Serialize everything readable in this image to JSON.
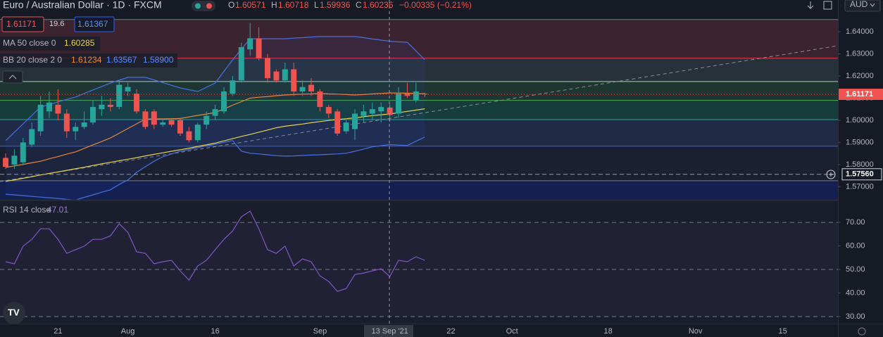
{
  "header": {
    "title": "Euro / Australian Dollar · 1D · FXCM",
    "ohlc_labels": [
      "O",
      "H",
      "L",
      "C"
    ],
    "change": "−0.00335 (−0.21%)",
    "sell": "1.61171",
    "spread": "19.6",
    "buy": "1.61367",
    "bb_lower": "1.58900",
    "currency": "AUD"
  },
  "chart_data": [
    {
      "type": "candlestick",
      "categories": [
        null,
        null,
        null,
        null,
        null,
        null,
        "21",
        null,
        null,
        null,
        null,
        null,
        null,
        null,
        "Aug",
        null,
        null,
        null,
        null,
        null,
        null,
        null,
        null,
        null,
        "16",
        null,
        null,
        null,
        null,
        null,
        null,
        null,
        null,
        null,
        null,
        null,
        "Sep",
        null,
        null,
        null,
        null,
        null,
        null,
        null,
        "13 Sep '21",
        null,
        null,
        null,
        null,
        null,
        null,
        "22",
        null,
        null,
        null,
        null,
        null,
        null,
        "Oct",
        null,
        null,
        null,
        null,
        null,
        null,
        null,
        null,
        null,
        null,
        "18",
        null,
        null,
        null,
        null,
        null,
        null,
        null,
        null,
        null,
        "Nov",
        null,
        null,
        null,
        null,
        null,
        null,
        null,
        null,
        null,
        "15",
        null,
        null,
        null,
        null,
        null
      ],
      "open": [
        1.583,
        1.58,
        1.581,
        1.589,
        1.595,
        1.604,
        1.607,
        1.603,
        1.595,
        1.597,
        1.599,
        1.605,
        1.607,
        1.606,
        1.613,
        1.612,
        1.604,
        1.604,
        1.598,
        1.6,
        1.6,
        1.595,
        1.591,
        1.598,
        1.602,
        1.604,
        1.612,
        1.618,
        1.632,
        1.637,
        1.628,
        1.622,
        1.618,
        1.623,
        1.613,
        1.616,
        1.613,
        1.606,
        1.604,
        1.595,
        1.596,
        1.602,
        1.603,
        1.604,
        1.60571,
        1.603,
        1.612,
        1.609,
        1.612,
        null,
        null,
        null,
        null,
        null,
        null,
        null,
        null,
        null,
        null,
        null,
        null,
        null,
        null,
        null,
        null,
        null,
        null,
        null,
        null,
        null,
        null,
        null,
        null,
        null,
        null,
        null,
        null,
        null,
        null,
        null,
        null,
        null,
        null,
        null,
        null,
        null,
        null,
        null,
        null,
        null,
        null,
        null,
        null,
        null,
        null
      ],
      "high": [
        1.585,
        1.587,
        1.592,
        1.599,
        1.611,
        1.613,
        1.614,
        1.605,
        1.599,
        1.604,
        1.609,
        1.611,
        1.61,
        1.618,
        1.617,
        1.614,
        1.605,
        1.605,
        1.6,
        1.601,
        1.601,
        1.597,
        1.599,
        1.604,
        1.607,
        1.615,
        1.62,
        1.635,
        1.644,
        1.642,
        1.63,
        1.623,
        1.626,
        1.626,
        1.618,
        1.619,
        1.614,
        1.607,
        1.605,
        1.601,
        1.605,
        1.607,
        1.608,
        1.608,
        1.60718,
        1.615,
        1.617,
        1.617,
        1.6125,
        null,
        null,
        null,
        null,
        null,
        null,
        null,
        null,
        null,
        null,
        null,
        null,
        null,
        null,
        null,
        null,
        null,
        null,
        null,
        null,
        null,
        null,
        null,
        null,
        null,
        null,
        null,
        null,
        null,
        null,
        null,
        null,
        null,
        null,
        null,
        null,
        null,
        null,
        null,
        null,
        null,
        null,
        null,
        null,
        null,
        null
      ],
      "low": [
        1.578,
        1.578,
        1.58,
        1.588,
        1.593,
        1.601,
        1.6,
        1.592,
        1.591,
        1.596,
        1.598,
        1.602,
        1.604,
        1.605,
        1.611,
        1.603,
        1.596,
        1.596,
        1.597,
        1.597,
        1.593,
        1.59,
        1.59,
        1.596,
        1.6,
        1.603,
        1.611,
        1.617,
        1.629,
        1.627,
        1.617,
        1.617,
        1.617,
        1.611,
        1.611,
        1.611,
        1.604,
        1.601,
        1.593,
        1.594,
        1.591,
        1.599,
        1.6,
        1.599,
        1.59936,
        1.601,
        1.61,
        1.608,
        1.6105,
        null,
        null,
        null,
        null,
        null,
        null,
        null,
        null,
        null,
        null,
        null,
        null,
        null,
        null,
        null,
        null,
        null,
        null,
        null,
        null,
        null,
        null,
        null,
        null,
        null,
        null,
        null,
        null,
        null,
        null,
        null,
        null,
        null,
        null,
        null,
        null,
        null,
        null,
        null,
        null,
        null,
        null,
        null,
        null,
        null,
        null
      ],
      "close": [
        1.579,
        1.584,
        1.59,
        1.596,
        1.607,
        1.608,
        1.603,
        1.595,
        1.597,
        1.599,
        1.606,
        1.607,
        1.606,
        1.616,
        1.615,
        1.604,
        1.597,
        1.598,
        1.599,
        1.598,
        1.594,
        1.591,
        1.598,
        1.602,
        1.605,
        1.613,
        1.618,
        1.633,
        1.637,
        1.628,
        1.619,
        1.618,
        1.623,
        1.613,
        1.615,
        1.613,
        1.606,
        1.603,
        1.594,
        1.599,
        1.603,
        1.604,
        1.605,
        1.606,
        1.60236,
        1.612,
        1.611,
        1.613,
        1.61171,
        null,
        null,
        null,
        null,
        null,
        null,
        null,
        null,
        null,
        null,
        null,
        null,
        null,
        null,
        null,
        null,
        null,
        null,
        null,
        null,
        null,
        null,
        null,
        null,
        null,
        null,
        null,
        null,
        null,
        null,
        null,
        null,
        null,
        null,
        null,
        null,
        null,
        null,
        null,
        null,
        null,
        null,
        null,
        null,
        null,
        null
      ],
      "up_color": "#26a69a",
      "down_color": "#ef5350",
      "series": [
        {
          "name": "MA 50 close 0",
          "color": "#e8d34a",
          "values": [
            1.5724,
            1.5731,
            1.5738,
            1.5745,
            1.5753,
            1.576,
            1.5767,
            1.5774,
            1.5781,
            1.5788,
            1.5796,
            1.5803,
            1.581,
            1.5817,
            1.5824,
            1.5831,
            1.5839,
            1.5846,
            1.5853,
            1.586,
            1.5867,
            1.5874,
            1.5882,
            1.5889,
            1.5897,
            1.5907,
            1.5917,
            1.5927,
            1.5936,
            1.5946,
            1.5956,
            1.5966,
            1.5973,
            1.5978,
            1.5983,
            1.5989,
            1.5994,
            1.5999,
            1.6003,
            1.6007,
            1.6011,
            1.6016,
            1.6021,
            1.6025,
            1.60285,
            1.6034,
            1.604,
            1.6046,
            1.6052,
            null,
            null,
            null,
            null,
            null,
            null,
            null,
            null,
            null,
            null,
            null,
            null,
            null,
            null,
            null,
            null,
            null,
            null,
            null,
            null,
            null,
            null,
            null,
            null,
            null,
            null,
            null,
            null,
            null,
            null,
            null,
            null,
            null,
            null,
            null,
            null,
            null,
            null,
            null,
            null,
            null,
            null,
            null,
            null,
            null,
            null
          ]
        },
        {
          "name": "BB 20 close 2 0",
          "color": "#e8893a",
          "values": [
            1.5787,
            1.5794,
            1.5801,
            1.5808,
            1.5815,
            1.5826,
            1.5836,
            1.5847,
            1.5857,
            1.5873,
            1.5889,
            1.5904,
            1.592,
            1.5941,
            1.5963,
            1.5984,
            1.6005,
            1.6006,
            1.6006,
            1.6007,
            1.6008,
            1.6015,
            1.6022,
            1.6028,
            1.6035,
            1.6051,
            1.6068,
            1.6084,
            1.61,
            1.6104,
            1.6107,
            1.6111,
            1.6114,
            1.6116,
            1.6118,
            1.6119,
            1.6121,
            1.6119,
            1.6118,
            1.6116,
            1.6114,
            1.6116,
            1.6119,
            1.6121,
            1.61234,
            1.6123,
            1.6122,
            1.6121,
            1.612,
            null,
            null,
            null,
            null,
            null,
            null,
            null,
            null,
            null,
            null,
            null,
            null,
            null,
            null,
            null,
            null,
            null,
            null,
            null,
            null,
            null,
            null,
            null,
            null,
            null,
            null,
            null,
            null,
            null,
            null,
            null,
            null,
            null,
            null,
            null,
            null,
            null,
            null,
            null,
            null,
            null,
            null,
            null,
            null,
            null,
            null
          ]
        },
        {
          "color": "#4a6fe3",
          "values": [
            1.5908,
            1.5946,
            1.5984,
            1.6022,
            1.606,
            1.6071,
            1.6083,
            1.6094,
            1.6105,
            1.6121,
            1.6137,
            1.6152,
            1.6168,
            1.6181,
            1.6194,
            1.6194,
            1.6194,
            1.6182,
            1.617,
            1.6158,
            1.6146,
            1.6138,
            1.613,
            1.6149,
            1.6168,
            1.6221,
            1.6273,
            1.6321,
            1.6368,
            1.6368,
            1.6368,
            1.6368,
            1.6368,
            1.6371,
            1.6373,
            1.6376,
            1.6378,
            1.6378,
            1.6378,
            1.6378,
            1.6378,
            1.6373,
            1.6367,
            1.6362,
            1.63567,
            1.6354,
            1.6352,
            1.6313,
            1.6273,
            null,
            null,
            null,
            null,
            null,
            null,
            null,
            null,
            null,
            null,
            null,
            null,
            null,
            null,
            null,
            null,
            null,
            null,
            null,
            null,
            null,
            null,
            null,
            null,
            null,
            null,
            null,
            null,
            null,
            null,
            null,
            null,
            null,
            null,
            null,
            null,
            null,
            null,
            null,
            null,
            null,
            null,
            null,
            null,
            null,
            null
          ]
        },
        {
          "color": "#4a6fe3",
          "values": [
            1.5666,
            1.5663,
            1.566,
            1.5656,
            1.5653,
            1.565,
            1.5647,
            1.5643,
            1.564,
            1.5652,
            1.5663,
            1.5675,
            1.5686,
            1.571,
            1.573,
            1.5765,
            1.579,
            1.5815,
            1.5835,
            1.5848,
            1.586,
            1.5868,
            1.5876,
            1.5884,
            1.5892,
            1.59,
            1.5908,
            1.586,
            1.5851,
            1.5848,
            1.5844,
            1.584,
            1.5838,
            1.5839,
            1.5841,
            1.5843,
            1.5844,
            1.5846,
            1.5848,
            1.5851,
            1.586,
            1.587,
            1.588,
            1.5885,
            1.589,
            1.5888,
            1.5886,
            1.5905,
            1.5924,
            null,
            null,
            null,
            null,
            null,
            null,
            null,
            null,
            null,
            null,
            null,
            null,
            null,
            null,
            null,
            null,
            null,
            null,
            null,
            null,
            null,
            null,
            null,
            null,
            null,
            null,
            null,
            null,
            null,
            null,
            null,
            null,
            null,
            null,
            null,
            null,
            null,
            null,
            null,
            null,
            null,
            null,
            null,
            null,
            null,
            null
          ]
        }
      ],
      "ylim": [
        1.5644,
        1.6543
      ],
      "yticks": [
        {
          "value": 1.57,
          "label": "1.57000"
        },
        {
          "value": 1.58,
          "label": "1.58000"
        },
        {
          "value": 1.59,
          "label": "1.59000"
        },
        {
          "value": 1.6,
          "label": "1.60000"
        },
        {
          "value": 1.61,
          "label": "1.61000"
        },
        {
          "value": 1.62,
          "label": "1.62000"
        },
        {
          "value": 1.63,
          "label": "1.63000"
        },
        {
          "value": 1.64,
          "label": "1.64000"
        }
      ],
      "levels": [
        {
          "value": 1.6455,
          "color": "#4a8f8a"
        },
        {
          "value": 1.628,
          "color": "#f23645"
        },
        {
          "value": 1.6175,
          "color": "#a5d6a7"
        },
        {
          "value": 1.609,
          "color": "#4caf50"
        },
        {
          "value": 1.6003,
          "color": "#26a69a"
        },
        {
          "value": 1.5883,
          "color": "#2962ff"
        },
        {
          "value": 1.5727,
          "color": "#787b86"
        }
      ],
      "zone_colors": [
        "#3b2330",
        "#28313a",
        "#1f3532",
        "#173d3b",
        "#1f2b45",
        "#1b2030",
        "#142150"
      ],
      "marker_line": {
        "value": 1.5756,
        "label": "1.57560"
      }
    },
    {
      "type": "line",
      "series": [
        {
          "name": "RSI 14 close",
          "color": "#7e57c2",
          "values": [
            53.3,
            52.4,
            59.9,
            62.8,
            67.3,
            67.3,
            62.8,
            56.9,
            58.4,
            59.9,
            62.8,
            62.8,
            64.3,
            69.4,
            65.8,
            57.5,
            56.9,
            52.4,
            53.3,
            53.9,
            49.4,
            45.5,
            51.5,
            53.9,
            58.4,
            62.8,
            66.4,
            72.4,
            74.8,
            67.3,
            58.4,
            56.9,
            59.9,
            51.5,
            54.5,
            53.3,
            47.3,
            44.9,
            40.7,
            41.9,
            47.9,
            48.5,
            49.4,
            50.3,
            47.01,
            53.9,
            53.3,
            55.4,
            53.9
          ]
        }
      ],
      "ylim": [
        27,
        79.3
      ],
      "yticks": [
        {
          "value": 30,
          "label": "30.00"
        },
        {
          "value": 40,
          "label": "40.00"
        },
        {
          "value": 50,
          "label": "50.00"
        },
        {
          "value": 60,
          "label": "60.00"
        },
        {
          "value": 70,
          "label": "70.00"
        }
      ],
      "band": [
        30,
        70
      ],
      "band_color": "#7e57c2",
      "guide_lines": [
        70,
        50,
        30
      ]
    }
  ]
}
